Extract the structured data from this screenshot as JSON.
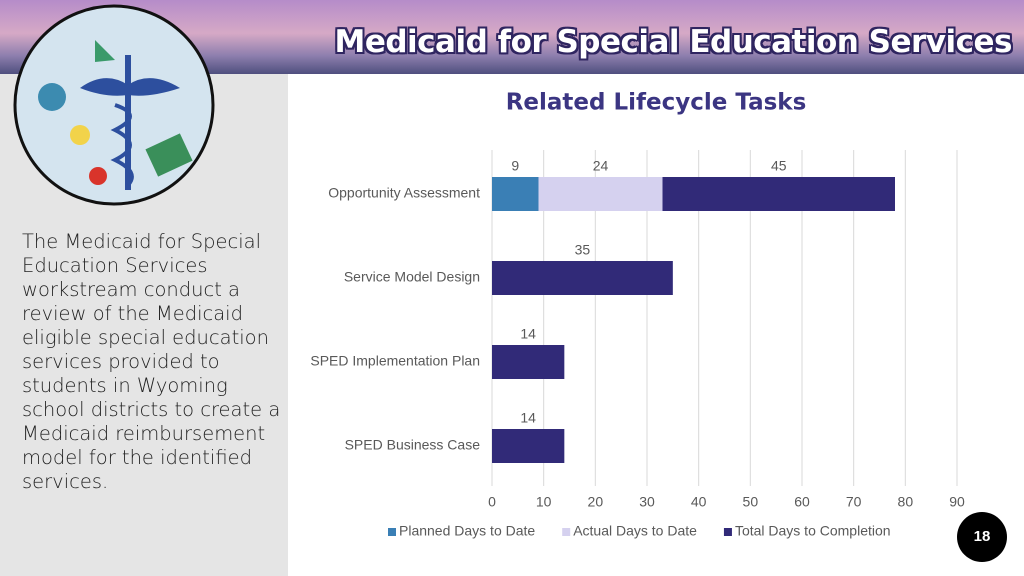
{
  "header": {
    "title": "Medicaid for Special Education Services"
  },
  "sidebar": {
    "text": "The Medicaid for Special Education Services workstream conduct a review of the Medicaid eligible special education services provided to students in Wyoming school districts to create a Medicaid reimbursement model for the identified services."
  },
  "page_number": "18",
  "chart_data": {
    "type": "stacked-barh",
    "title": "Related Lifecycle Tasks",
    "categories": [
      "Opportunity Assessment",
      "Service Model Design",
      "SPED Implementation Plan",
      "SPED Business Case"
    ],
    "series": [
      {
        "name": "Planned Days to Date",
        "color": "#3a7fb5",
        "values": [
          9,
          null,
          null,
          null
        ]
      },
      {
        "name": "Actual Days to Date",
        "color": "#d5d1ef",
        "values": [
          24,
          null,
          null,
          null
        ]
      },
      {
        "name": "Total Days to Completion",
        "color": "#312a78",
        "values": [
          45,
          35,
          14,
          14
        ]
      }
    ],
    "xlim": [
      0,
      90
    ],
    "xticks": [
      0,
      10,
      20,
      30,
      40,
      50,
      60,
      70,
      80,
      90
    ],
    "grid": true,
    "legend": "bottom"
  }
}
